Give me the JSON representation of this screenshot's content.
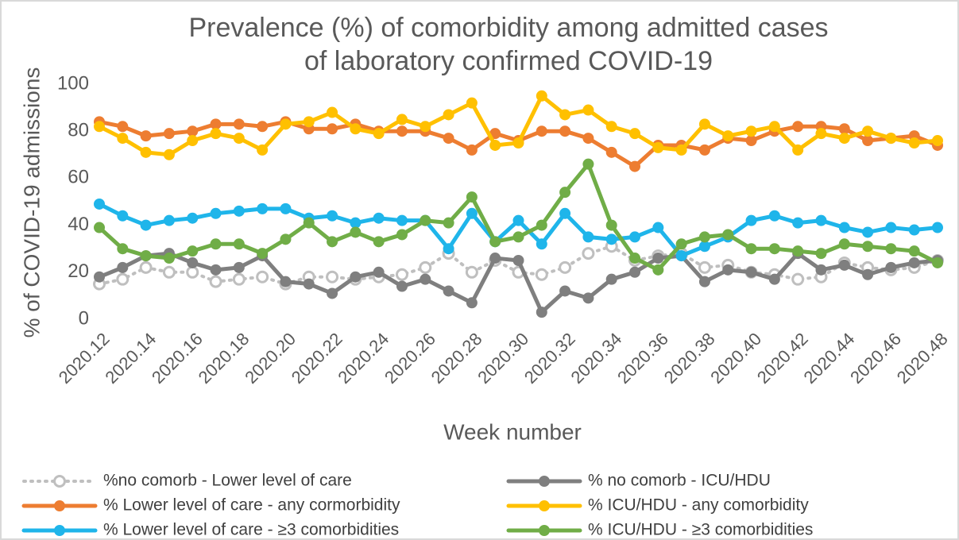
{
  "chart_data": {
    "type": "line",
    "title": "Prevalence (%) of comorbidity among admitted cases of laboratory confirmed COVID-19",
    "x_label": "Week number",
    "y_label": "% of COVID-19 admissions",
    "categories": [
      "2020.12",
      null,
      "2020.14",
      null,
      "2020.16",
      null,
      "2020.18",
      null,
      "2020.20",
      null,
      "2020.22",
      null,
      "2020.24",
      null,
      "2020.26",
      null,
      "2020.28",
      null,
      "2020.30",
      null,
      "2020.32",
      null,
      "2020.34",
      null,
      "2020.36",
      null,
      "2020.38",
      null,
      "2020.40",
      null,
      "2020.42",
      null,
      "2020.44",
      null,
      "2020.46",
      null,
      "2020.48"
    ],
    "ylim": [
      0,
      100
    ],
    "yticks": [
      0,
      20,
      40,
      60,
      80,
      100
    ],
    "grid": false,
    "legend": "bottom",
    "series": [
      {
        "name": "%no comorb - Lower level of care",
        "color": "#bfbfbf",
        "style": "dotted",
        "values": [
          15,
          17,
          22,
          20,
          20,
          16,
          17,
          18,
          15,
          18,
          18,
          17,
          18,
          19,
          22,
          28,
          20,
          25,
          20,
          19,
          22,
          28,
          31,
          25,
          27,
          28,
          22,
          23,
          20,
          19,
          17,
          18,
          24,
          22,
          21,
          22,
          25
        ]
      },
      {
        "name": "% no comorb - ICU/HDU",
        "color": "#7f7f7f",
        "style": "solid",
        "values": [
          18,
          22,
          27,
          28,
          24,
          21,
          22,
          27,
          16,
          15,
          11,
          18,
          20,
          14,
          17,
          12,
          7,
          26,
          25,
          3,
          12,
          9,
          17,
          20,
          26,
          27,
          16,
          21,
          20,
          17,
          28,
          21,
          23,
          19,
          22,
          24,
          25
        ]
      },
      {
        "name": "% Lower level of care - any cormorbidity",
        "color": "#ed7d31",
        "style": "solid",
        "values": [
          84,
          82,
          78,
          79,
          80,
          83,
          83,
          82,
          84,
          81,
          81,
          83,
          80,
          80,
          80,
          77,
          72,
          79,
          76,
          80,
          80,
          77,
          71,
          65,
          74,
          74,
          72,
          77,
          76,
          80,
          82,
          82,
          81,
          76,
          77,
          78,
          74
        ]
      },
      {
        "name": "% ICU/HDU  - any comorbidity",
        "color": "#ffc000",
        "style": "solid",
        "values": [
          82,
          77,
          71,
          70,
          76,
          79,
          77,
          72,
          83,
          84,
          88,
          81,
          79,
          85,
          82,
          87,
          92,
          74,
          75,
          95,
          87,
          89,
          82,
          79,
          73,
          72,
          83,
          78,
          80,
          82,
          72,
          79,
          77,
          80,
          77,
          75,
          76
        ]
      },
      {
        "name": "% Lower level of care - ≥3 comorbidities",
        "color": "#1fb5ea",
        "style": "solid",
        "values": [
          49,
          44,
          40,
          42,
          43,
          45,
          46,
          47,
          47,
          43,
          44,
          41,
          43,
          42,
          42,
          30,
          45,
          33,
          42,
          32,
          45,
          35,
          34,
          35,
          39,
          27,
          31,
          35,
          42,
          44,
          41,
          42,
          39,
          37,
          39,
          38,
          39
        ]
      },
      {
        "name": "% ICU/HDU  -  ≥3 comorbidities",
        "color": "#70ad47",
        "style": "solid",
        "values": [
          39,
          30,
          27,
          26,
          29,
          32,
          32,
          28,
          34,
          41,
          33,
          37,
          33,
          36,
          42,
          41,
          52,
          33,
          35,
          40,
          54,
          66,
          40,
          26,
          21,
          32,
          35,
          36,
          30,
          30,
          29,
          28,
          32,
          31,
          30,
          29,
          24
        ]
      }
    ]
  }
}
